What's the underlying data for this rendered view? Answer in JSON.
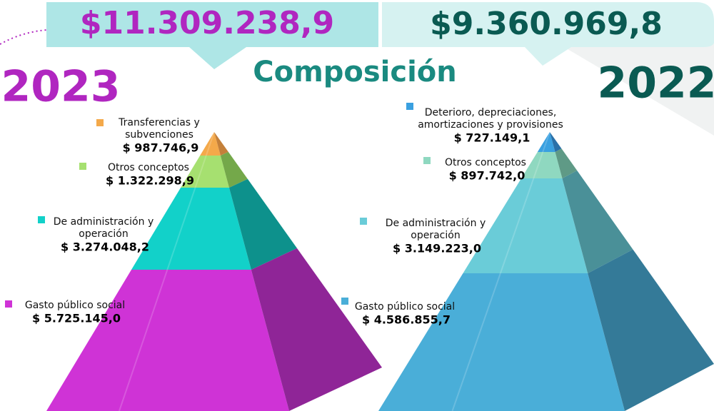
{
  "header": {
    "total_2023": "$11.309.238,9",
    "total_2022": "$9.360.969,8",
    "title": "Composición",
    "year_2023": "2023",
    "year_2022": "2022"
  },
  "pyramid_2023": {
    "items": [
      {
        "label": [
          "Transferencias y",
          "subvenciones"
        ],
        "amount": "$ 987.746,9"
      },
      {
        "label": [
          "Otros conceptos"
        ],
        "amount": "$ 1.322.298,9"
      },
      {
        "label": [
          "De administración y",
          "operación"
        ],
        "amount": "$ 3.274.048,2"
      },
      {
        "label": [
          "Gasto público social"
        ],
        "amount": "$ 5.725.145,0"
      }
    ]
  },
  "pyramid_2022": {
    "items": [
      {
        "label": [
          "Deterioro, depreciaciones,",
          "amortizaciones y provisiones"
        ],
        "amount": "$ 727.149,1"
      },
      {
        "label": [
          "Otros conceptos"
        ],
        "amount": "$ 897.742,0"
      },
      {
        "label": [
          "De administración y",
          "operación"
        ],
        "amount": "$ 3.149.223,0"
      },
      {
        "label": [
          "Gasto público social"
        ],
        "amount": "$ 4.586.855,7"
      }
    ]
  }
}
